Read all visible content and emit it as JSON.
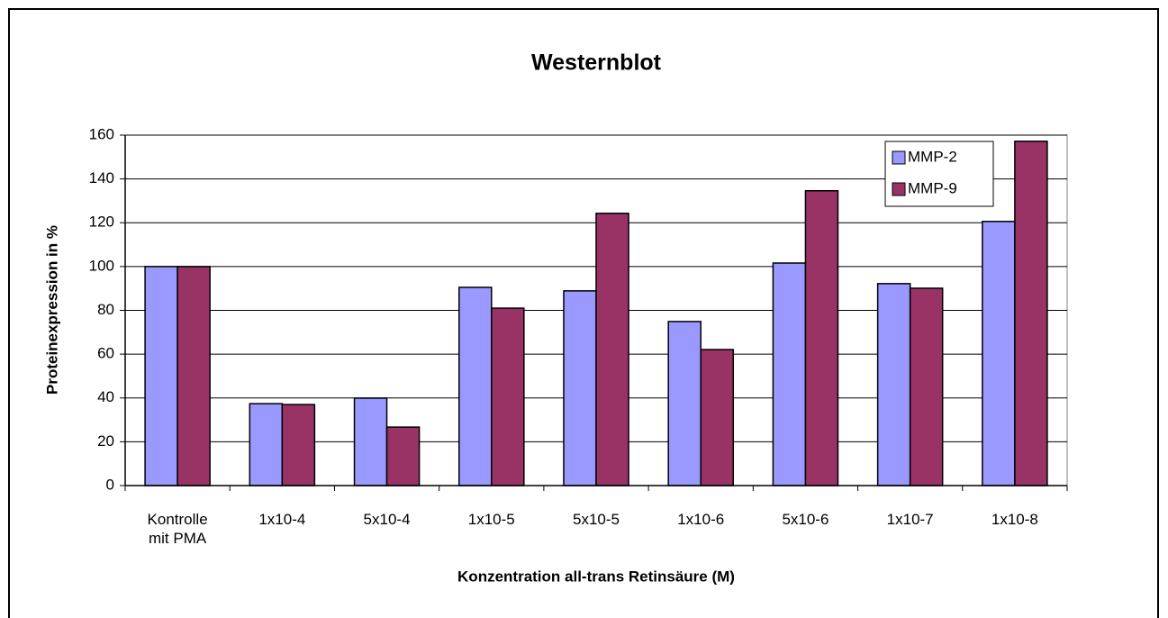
{
  "chart_data": {
    "type": "bar",
    "title": "Westernblot",
    "xlabel": "Konzentration all-trans Retinsäure (M)",
    "ylabel": "Proteinexpression in %",
    "categories": [
      "Kontrolle mit PMA",
      "1x10-4",
      "5x10-4",
      "1x10-5",
      "5x10-5",
      "1x10-6",
      "5x10-6",
      "1x10-7",
      "1x10-8"
    ],
    "series": [
      {
        "name": "MMP-2",
        "color": "#9999ff",
        "values": [
          100,
          37.4,
          39.9,
          90.5,
          88.9,
          74.9,
          101.6,
          92.2,
          120.6
        ]
      },
      {
        "name": "MMP-9",
        "color": "#993366",
        "values": [
          100,
          37,
          26.7,
          81,
          124.3,
          62.1,
          134.6,
          90.1,
          157.2
        ]
      }
    ],
    "ylim": [
      0,
      160
    ],
    "yticks": [
      0,
      20,
      40,
      60,
      80,
      100,
      120,
      140,
      160
    ],
    "grid": true,
    "legend": "upper right"
  }
}
